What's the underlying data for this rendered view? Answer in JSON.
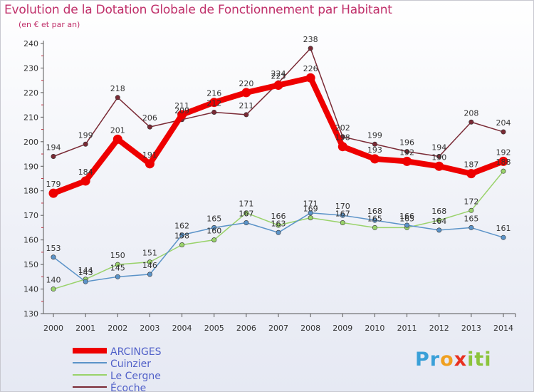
{
  "chart_data": {
    "type": "line",
    "title": "Evolution de la Dotation Globale de Fonctionnement par Habitant",
    "subtitle": "(en € et par an)",
    "xlabel": "",
    "ylabel": "",
    "categories": [
      "2000",
      "2001",
      "2002",
      "2003",
      "2004",
      "2005",
      "2006",
      "2007",
      "2008",
      "2009",
      "2010",
      "2011",
      "2012",
      "2013",
      "2014"
    ],
    "ylim": [
      130,
      240
    ],
    "yticks": [
      130,
      140,
      150,
      160,
      170,
      180,
      190,
      200,
      210,
      220,
      230,
      240
    ],
    "grid": false,
    "legend_position": "bottom-left",
    "series": [
      {
        "name": "ARCINGES",
        "color": "#ee0000",
        "values": [
          179,
          184,
          201,
          191,
          211,
          216,
          220,
          223,
          226,
          198,
          193,
          192,
          190,
          187,
          192
        ],
        "labels": [
          "179",
          "184",
          "201",
          "191",
          "211",
          "216",
          "220",
          "223",
          "226",
          "198",
          "193",
          "192",
          "190",
          "187",
          "192"
        ]
      },
      {
        "name": "Cuinzier",
        "color": "#5b93c8",
        "values": [
          153,
          143,
          145,
          146,
          162,
          165,
          167,
          163,
          171,
          170,
          168,
          166,
          164,
          165,
          161
        ],
        "labels": [
          "153",
          "143",
          "145",
          "146",
          "162",
          "165",
          "167",
          "163",
          "171",
          "170",
          "168",
          "166",
          "164",
          "165",
          "161"
        ]
      },
      {
        "name": "Le Cergne",
        "color": "#99d26a",
        "values": [
          140,
          144,
          150,
          151,
          158,
          160,
          171,
          166,
          169,
          167,
          165,
          165,
          168,
          172,
          188
        ],
        "labels": [
          "140",
          "144",
          "150",
          "151",
          "158",
          "160",
          "171",
          "166",
          "169",
          "167",
          "165",
          "165",
          "168",
          "172",
          "188"
        ]
      },
      {
        "name": "Écoche",
        "color": "#7a2a35",
        "values": [
          194,
          199,
          218,
          206,
          209,
          212,
          211,
          224,
          238,
          202,
          199,
          196,
          194,
          208,
          204
        ],
        "labels": [
          "194",
          "199",
          "218",
          "206",
          "209",
          "212",
          "211",
          "224",
          "238",
          "202",
          "199",
          "196",
          "194",
          "208",
          "204"
        ]
      }
    ]
  },
  "brand": {
    "letters": [
      "P",
      "r",
      "o",
      "x",
      "i",
      "t",
      "i"
    ],
    "colors": [
      "#3aa0d8",
      "#3aa0d8",
      "#f0a020",
      "#e83020",
      "#8cc43c",
      "#8cc43c",
      "#8cc43c"
    ]
  }
}
